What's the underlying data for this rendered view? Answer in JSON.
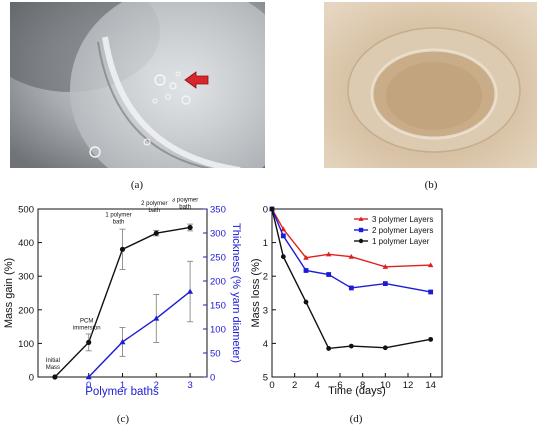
{
  "panels": {
    "a": "(a)",
    "b": "(b)",
    "c": "(c)",
    "d": "(d)"
  },
  "colors": {
    "black": "#111111",
    "blue": "#1c1cd6",
    "red": "#e0201e",
    "arrow": "#d8262a"
  },
  "chart_data": [
    {
      "type": "line",
      "xlabel": "Polymer baths",
      "ylabel": "Mass gain (%)",
      "y2label": "Thickness (% yarn diameter)",
      "xlim": [
        -1.5,
        3.5
      ],
      "ylim": [
        0,
        500
      ],
      "y2lim": [
        0,
        350
      ],
      "x_ticks": [
        "0",
        "1",
        "2",
        "3"
      ],
      "y_ticks": [
        "0",
        "100",
        "200",
        "300",
        "400",
        "500"
      ],
      "y2_ticks": [
        "0",
        "50",
        "100",
        "150",
        "200",
        "250",
        "300",
        "350"
      ],
      "series": [
        {
          "axis": "left",
          "color": "#111111",
          "marker": "circle",
          "x": [
            -1,
            0,
            1,
            2,
            3
          ],
          "y": [
            0,
            103,
            380,
            428,
            445
          ],
          "error": [
            0,
            25,
            60,
            8,
            10
          ]
        },
        {
          "axis": "right",
          "color": "#1c1cd6",
          "marker": "triangle",
          "x": [
            0,
            1,
            2,
            3
          ],
          "y": [
            0,
            73,
            122,
            178
          ],
          "error": [
            0,
            30,
            50,
            63
          ]
        }
      ],
      "annotations": [
        {
          "text": [
            "Initial",
            "Mass"
          ],
          "x": -1,
          "y": 0
        },
        {
          "text": [
            "PCM",
            "immersion"
          ],
          "x": 0,
          "y": 103
        },
        {
          "text": [
            "1 polymer",
            "bath"
          ],
          "x": 1,
          "y": 380
        },
        {
          "text": [
            "2 polymer",
            "bath"
          ],
          "x": 2,
          "y": 428
        },
        {
          "text": [
            "3 polymer",
            "bath"
          ],
          "x": 3,
          "y": 445
        }
      ]
    },
    {
      "type": "line",
      "xlabel": "Time (days)",
      "ylabel": "Mass loss (%)",
      "xlim": [
        0,
        15
      ],
      "ylim": [
        0,
        5
      ],
      "y_inverted": true,
      "x_ticks": [
        "0",
        "2",
        "4",
        "6",
        "8",
        "10",
        "12",
        "14"
      ],
      "y_ticks": [
        "0",
        "1",
        "2",
        "3",
        "4",
        "5"
      ],
      "legend_position": "top-right",
      "series": [
        {
          "name": "3 polymer Layers",
          "color": "#e0201e",
          "marker": "triangle",
          "x": [
            0,
            1,
            3,
            5,
            7,
            10,
            14
          ],
          "y": [
            0,
            0.6,
            1.45,
            1.35,
            1.42,
            1.72,
            1.67
          ]
        },
        {
          "name": "2 polymer Layers",
          "color": "#1c1cd6",
          "marker": "square",
          "x": [
            0,
            1,
            3,
            5,
            7,
            10,
            14
          ],
          "y": [
            0,
            0.8,
            1.83,
            1.95,
            2.35,
            2.22,
            2.47
          ]
        },
        {
          "name": "1 polymer Layer",
          "color": "#111111",
          "marker": "circle",
          "x": [
            0,
            1,
            3,
            5,
            7,
            10,
            14
          ],
          "y": [
            0,
            1.42,
            2.77,
            4.15,
            4.08,
            4.13,
            3.88
          ]
        }
      ]
    }
  ]
}
